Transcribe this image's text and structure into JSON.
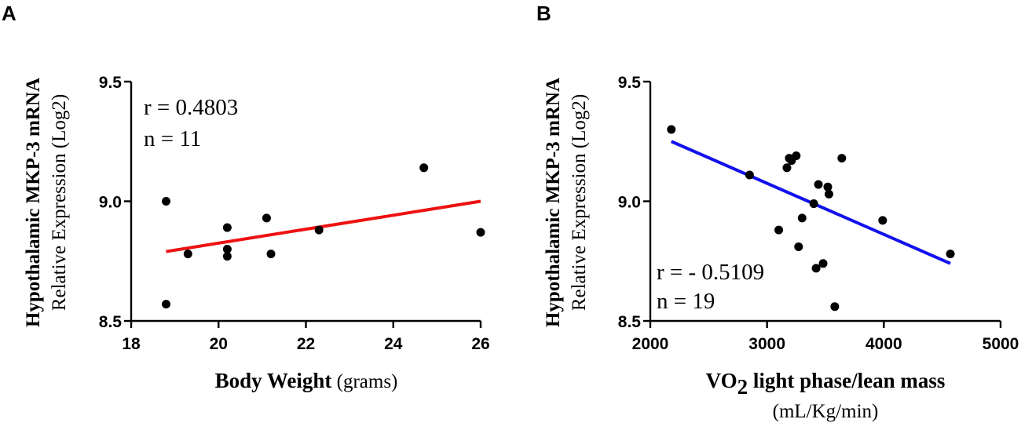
{
  "chart_data": [
    {
      "panel": "A",
      "type": "scatter",
      "title": "",
      "ylabel_line1": "Hypothalamic MKP-3 mRNA",
      "ylabel_line2": "Relative Expression (Log2)",
      "xlabel_bold": "Body Weight",
      "xlabel_unit": " (grams)",
      "xlim": [
        18,
        26
      ],
      "ylim": [
        8.5,
        9.5
      ],
      "xticks": [
        18,
        20,
        22,
        24,
        26
      ],
      "yticks": [
        8.5,
        9.0,
        9.5
      ],
      "xtick_labels": [
        "18",
        "20",
        "22",
        "24",
        "26"
      ],
      "ytick_labels": [
        "8.5",
        "9.0",
        "9.5"
      ],
      "points": [
        {
          "x": 18.8,
          "y": 9.0
        },
        {
          "x": 18.8,
          "y": 8.57
        },
        {
          "x": 19.3,
          "y": 8.78
        },
        {
          "x": 20.2,
          "y": 8.89
        },
        {
          "x": 20.2,
          "y": 8.8
        },
        {
          "x": 20.2,
          "y": 8.77
        },
        {
          "x": 21.1,
          "y": 8.93
        },
        {
          "x": 21.2,
          "y": 8.78
        },
        {
          "x": 22.3,
          "y": 8.88
        },
        {
          "x": 24.7,
          "y": 9.14
        },
        {
          "x": 26.0,
          "y": 8.87
        }
      ],
      "fit_line": {
        "x": [
          18.8,
          26.0
        ],
        "y": [
          8.79,
          9.0
        ],
        "color": "#ee1111"
      },
      "r_text": "r = 0.4803",
      "n_text": "n = 11"
    },
    {
      "panel": "B",
      "type": "scatter",
      "title": "",
      "ylabel_line1": "Hypothalamic MKP-3 mRNA",
      "ylabel_line2": "Relative Expression (Log2)",
      "xlabel_bold_pre": "VO",
      "xlabel_sub": "2",
      "xlabel_bold_post": " light phase/lean mass",
      "xlabel_unit": "(mL/Kg/min)",
      "xlim": [
        2000,
        5000
      ],
      "ylim": [
        8.5,
        9.5
      ],
      "xticks": [
        2000,
        3000,
        4000,
        5000
      ],
      "yticks": [
        8.5,
        9.0,
        9.5
      ],
      "xtick_labels": [
        "2000",
        "3000",
        "4000",
        "5000"
      ],
      "ytick_labels": [
        "8.5",
        "9.0",
        "9.5"
      ],
      "points": [
        {
          "x": 2180,
          "y": 9.3
        },
        {
          "x": 2850,
          "y": 9.11
        },
        {
          "x": 3100,
          "y": 8.88
        },
        {
          "x": 3170,
          "y": 9.14
        },
        {
          "x": 3190,
          "y": 9.18
        },
        {
          "x": 3210,
          "y": 9.17
        },
        {
          "x": 3250,
          "y": 9.19
        },
        {
          "x": 3270,
          "y": 8.81
        },
        {
          "x": 3300,
          "y": 8.93
        },
        {
          "x": 3400,
          "y": 8.99
        },
        {
          "x": 3420,
          "y": 8.72
        },
        {
          "x": 3440,
          "y": 9.07
        },
        {
          "x": 3480,
          "y": 8.74
        },
        {
          "x": 3520,
          "y": 9.06
        },
        {
          "x": 3530,
          "y": 9.03
        },
        {
          "x": 3580,
          "y": 8.56
        },
        {
          "x": 3640,
          "y": 9.18
        },
        {
          "x": 3990,
          "y": 8.92
        },
        {
          "x": 4570,
          "y": 8.78
        }
      ],
      "fit_line": {
        "x": [
          2180,
          4570
        ],
        "y": [
          9.25,
          8.74
        ],
        "color": "#1111ee"
      },
      "r_text": "r = - 0.5109",
      "n_text": "n = 19"
    }
  ]
}
